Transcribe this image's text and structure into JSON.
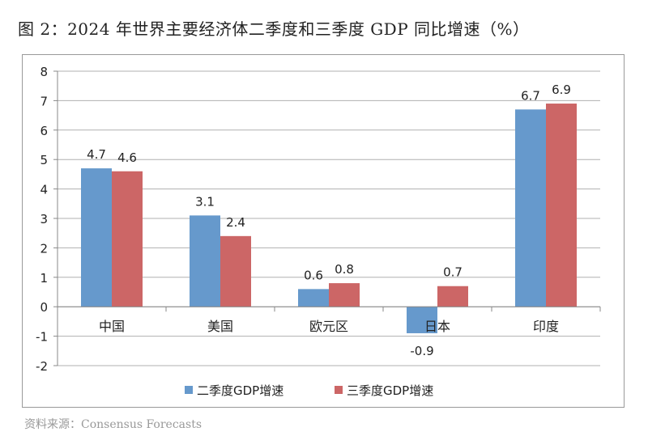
{
  "title": "图 2：2024 年世界主要经济体二季度和三季度 GDP 同比增速（%）",
  "source": "资料来源：Consensus Forecasts",
  "chart_data": {
    "type": "bar",
    "title": "图 2：2024 年世界主要经济体二季度和三季度 GDP 同比增速（%）",
    "categories": [
      "中国",
      "美国",
      "欧元区",
      "日本",
      "印度"
    ],
    "series": [
      {
        "name": "二季度GDP增速",
        "values": [
          4.7,
          3.1,
          0.6,
          -0.9,
          6.7
        ],
        "color": "#6699cc"
      },
      {
        "name": "三季度GDP增速",
        "values": [
          4.6,
          2.4,
          0.8,
          0.7,
          6.9
        ],
        "color": "#cc6666"
      }
    ],
    "ylim": [
      -2,
      8
    ],
    "yticks": [
      -2,
      -1,
      0,
      1,
      2,
      3,
      4,
      5,
      6,
      7,
      8
    ],
    "grid": true,
    "legend": "bottom"
  }
}
